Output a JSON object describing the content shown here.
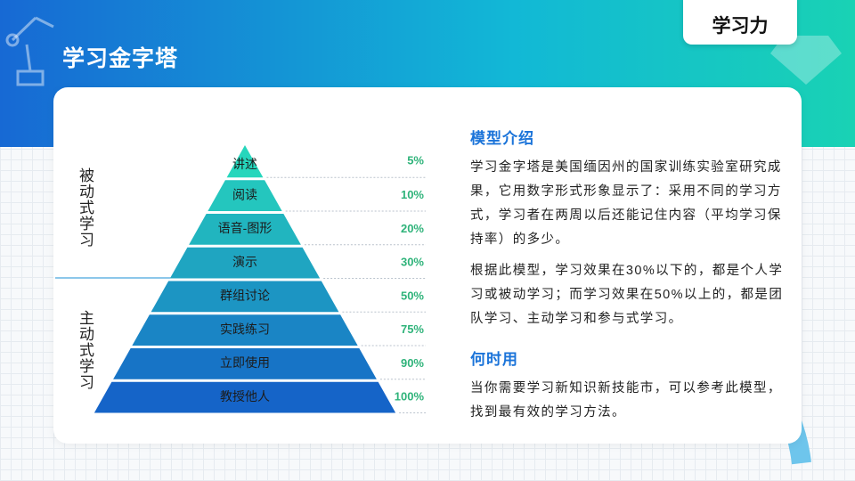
{
  "header": {
    "title": "学习金字塔",
    "tag": "学习力"
  },
  "pyramid": {
    "groups": [
      "被动式学习",
      "主动式学习"
    ],
    "levels": [
      {
        "label": "讲述",
        "rate": "5%"
      },
      {
        "label": "阅读",
        "rate": "10%"
      },
      {
        "label": "语音-图形",
        "rate": "20%"
      },
      {
        "label": "演示",
        "rate": "30%"
      },
      {
        "label": "群组讨论",
        "rate": "50%"
      },
      {
        "label": "实践练习",
        "rate": "75%"
      },
      {
        "label": "立即使用",
        "rate": "90%"
      },
      {
        "label": "教授他人",
        "rate": "100%"
      }
    ]
  },
  "intro": {
    "heading": "模型介绍",
    "paragraphs": [
      "学习金字塔是美国缅因州的国家训练实验室研究成果，它用数字形式形象显示了：采用不同的学习方式，学习者在两周以后还能记住内容（平均学习保持率）的多少。",
      "根据此模型，学习效果在30%以下的，都是个人学习或被动学习；而学习效果在50%以上的，都是团队学习、主动学习和参与式学习。"
    ]
  },
  "usage": {
    "heading": "何时用",
    "text": "当你需要学习新知识新技能市，可以参考此模型，找到最有效的学习方法。"
  }
}
